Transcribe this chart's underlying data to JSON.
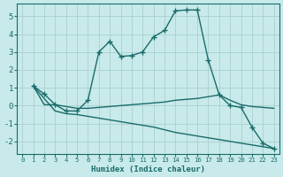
{
  "xlabel": "Humidex (Indice chaleur)",
  "background_color": "#c8eaea",
  "grid_color": "#aacfcf",
  "line_color": "#1a6b6b",
  "xlim": [
    -0.5,
    23.5
  ],
  "ylim": [
    -2.7,
    5.7
  ],
  "xticks": [
    0,
    1,
    2,
    3,
    4,
    5,
    6,
    7,
    8,
    9,
    10,
    11,
    12,
    13,
    14,
    15,
    16,
    17,
    18,
    19,
    20,
    21,
    22,
    23
  ],
  "yticks": [
    -2,
    -1,
    0,
    1,
    2,
    3,
    4,
    5
  ],
  "line1_x": [
    1,
    2,
    3,
    4,
    5,
    6,
    7,
    8,
    9,
    10,
    11,
    12,
    13,
    14,
    15,
    16,
    17,
    18,
    19,
    20,
    21,
    22,
    23
  ],
  "line1_y": [
    1.1,
    0.65,
    0.05,
    -0.3,
    -0.3,
    0.3,
    3.0,
    3.6,
    2.75,
    2.8,
    3.0,
    3.85,
    4.2,
    5.3,
    5.35,
    5.35,
    2.55,
    0.6,
    0.0,
    -0.1,
    -1.2,
    -2.1,
    -2.4
  ],
  "line2_x": [
    1,
    2,
    3,
    4,
    5,
    6,
    7,
    8,
    9,
    10,
    11,
    12,
    13,
    14,
    15,
    16,
    17,
    18,
    19,
    20,
    21,
    22,
    23
  ],
  "line2_y": [
    1.1,
    0.05,
    0.05,
    -0.05,
    -0.15,
    -0.15,
    -0.1,
    -0.05,
    0.0,
    0.05,
    0.1,
    0.15,
    0.2,
    0.3,
    0.35,
    0.4,
    0.5,
    0.6,
    0.3,
    0.05,
    -0.05,
    -0.1,
    -0.15
  ],
  "line3_x": [
    1,
    2,
    3,
    4,
    5,
    6,
    7,
    8,
    9,
    10,
    11,
    12,
    13,
    14,
    15,
    16,
    17,
    18,
    19,
    20,
    21,
    22,
    23
  ],
  "line3_y": [
    1.1,
    0.4,
    -0.3,
    -0.45,
    -0.5,
    -0.6,
    -0.7,
    -0.8,
    -0.9,
    -1.0,
    -1.1,
    -1.2,
    -1.35,
    -1.5,
    -1.6,
    -1.7,
    -1.8,
    -1.9,
    -2.0,
    -2.1,
    -2.2,
    -2.3,
    -2.4
  ],
  "linewidth": 1.0,
  "marker": "+",
  "marker_size": 4,
  "marker_linewidth": 1.0
}
